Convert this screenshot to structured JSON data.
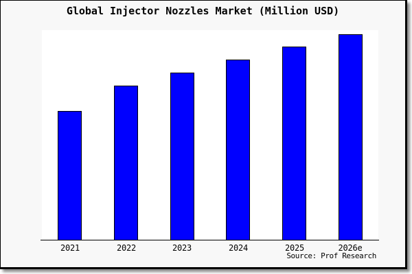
{
  "header": {
    "title": "Global Injector Nozzles Market (Million USD)"
  },
  "footer": {
    "source_label": "Source: Prof Research"
  },
  "colors": {
    "bar_fill": "#0000ff",
    "bar_border": "#000000",
    "canvas_background": "#f8f8f8",
    "plot_background": "#ffffff",
    "axis": "#000000",
    "text": "#000000"
  },
  "chart_data": {
    "type": "bar",
    "title": "Global Injector Nozzles Market (Million USD)",
    "categories": [
      "2021",
      "2022",
      "2023",
      "2024",
      "2025",
      "2026e"
    ],
    "values": [
      100,
      120,
      130,
      140,
      150,
      160
    ],
    "value_note": "y-axis is unlabeled; values are relative units estimated from bar heights with 2021 indexed to 100",
    "xlabel": "",
    "ylabel": "",
    "ylim": [
      0,
      163
    ],
    "grid": false,
    "legend": false,
    "source": "Source: Prof Research"
  }
}
